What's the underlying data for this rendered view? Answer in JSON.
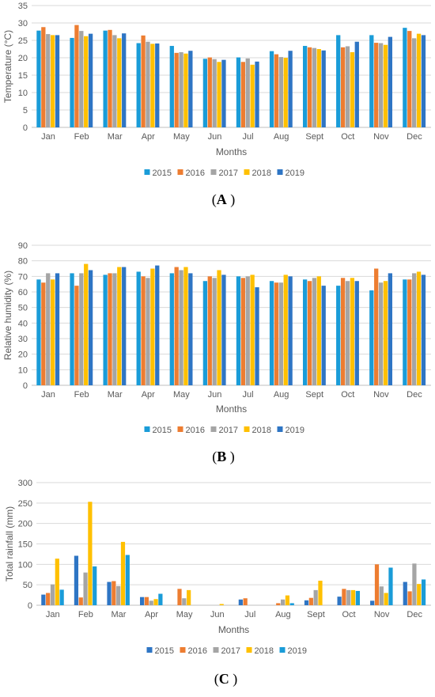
{
  "chart_data": [
    {
      "type": "bar",
      "panel_label": "A",
      "xlabel": "Months",
      "ylabel": "Temperature (°C)",
      "ylim": [
        0,
        35
      ],
      "yticks": [
        0,
        5,
        10,
        15,
        20,
        25,
        30,
        35
      ],
      "grid": true,
      "legend": "bottom",
      "categories": [
        "Jan",
        "Feb",
        "Mar",
        "Apr",
        "May",
        "Jun",
        "Jul",
        "Aug",
        "Sept",
        "Oct",
        "Nov",
        "Dec"
      ],
      "series": [
        {
          "name": "2015",
          "color": "#1a9cd8",
          "values": [
            27.8,
            25.7,
            27.8,
            24.2,
            23.4,
            19.7,
            20.1,
            21.9,
            23.4,
            26.5,
            26.5,
            28.6
          ]
        },
        {
          "name": "2016",
          "color": "#ed7d31",
          "values": [
            28.8,
            29.4,
            28.0,
            26.4,
            21.4,
            20.1,
            18.8,
            21.0,
            23.0,
            23.0,
            24.3,
            27.7
          ]
        },
        {
          "name": "2017",
          "color": "#a5a5a5",
          "values": [
            26.8,
            27.7,
            26.5,
            24.6,
            21.6,
            19.6,
            19.8,
            20.2,
            22.8,
            23.3,
            24.2,
            25.6
          ]
        },
        {
          "name": "2018",
          "color": "#ffc000",
          "values": [
            26.5,
            26.2,
            25.6,
            24.0,
            21.2,
            18.8,
            18.0,
            20.0,
            22.5,
            21.6,
            23.7,
            26.9
          ]
        },
        {
          "name": "2019",
          "color": "#2e75c4",
          "values": [
            26.5,
            26.9,
            27.0,
            24.1,
            22.0,
            19.4,
            18.9,
            22.0,
            22.1,
            24.6,
            26.0,
            26.5
          ]
        }
      ]
    },
    {
      "type": "bar",
      "panel_label": "B",
      "xlabel": "Months",
      "ylabel": "Relative humidity (%)",
      "ylim": [
        0,
        90
      ],
      "yticks": [
        0,
        10,
        20,
        30,
        40,
        50,
        60,
        70,
        80,
        90
      ],
      "grid": true,
      "legend": "bottom",
      "categories": [
        "Jan",
        "Feb",
        "Mar",
        "Apr",
        "May",
        "Jun",
        "Jul",
        "Aug",
        "Sept",
        "Oct",
        "Nov",
        "Dec"
      ],
      "series": [
        {
          "name": "2015",
          "color": "#1a9cd8",
          "values": [
            68,
            72,
            71,
            73,
            72,
            67,
            70,
            67,
            68,
            64,
            61,
            68
          ]
        },
        {
          "name": "2016",
          "color": "#ed7d31",
          "values": [
            66,
            64,
            72,
            70,
            76,
            70,
            69,
            66,
            67,
            69,
            75,
            68
          ]
        },
        {
          "name": "2017",
          "color": "#a5a5a5",
          "values": [
            72,
            72,
            72,
            69,
            74,
            69,
            70,
            66,
            69,
            67,
            66,
            72
          ]
        },
        {
          "name": "2018",
          "color": "#ffc000",
          "values": [
            68,
            78,
            76,
            75,
            76,
            74,
            71,
            71,
            70,
            69,
            67,
            73
          ]
        },
        {
          "name": "2019",
          "color": "#2e75c4",
          "values": [
            72,
            74,
            76,
            77,
            72,
            71,
            63,
            70,
            64,
            67,
            72,
            71
          ]
        }
      ]
    },
    {
      "type": "bar",
      "panel_label": "C",
      "xlabel": "Months",
      "ylabel": "Total rainfall (mm)",
      "ylim": [
        0,
        300
      ],
      "yticks": [
        0,
        50,
        100,
        150,
        200,
        250,
        300
      ],
      "grid": true,
      "legend": "bottom",
      "categories": [
        "Jan",
        "Feb",
        "Mar",
        "Apr",
        "May",
        "Jun",
        "Jul",
        "Aug",
        "Sept",
        "Oct",
        "Nov",
        "Dec"
      ],
      "series": [
        {
          "name": "2015",
          "color": "#2e75c4",
          "values": [
            26,
            121,
            57,
            20,
            0,
            0,
            14,
            0,
            12,
            21,
            11,
            57
          ]
        },
        {
          "name": "2016",
          "color": "#ed7d31",
          "values": [
            30,
            19,
            59,
            20,
            40,
            0,
            17,
            5,
            18,
            40,
            100,
            34
          ]
        },
        {
          "name": "2017",
          "color": "#a5a5a5",
          "values": [
            51,
            80,
            47,
            11,
            17,
            0,
            0,
            14,
            37,
            37,
            46,
            102
          ]
        },
        {
          "name": "2018",
          "color": "#ffc000",
          "values": [
            114,
            253,
            155,
            15,
            37,
            3,
            0,
            24,
            60,
            37,
            30,
            52
          ]
        },
        {
          "name": "2019",
          "color": "#1a9cd8",
          "values": [
            38,
            95,
            123,
            28,
            0,
            0,
            0,
            5,
            0,
            35,
            92,
            63
          ]
        }
      ]
    }
  ]
}
